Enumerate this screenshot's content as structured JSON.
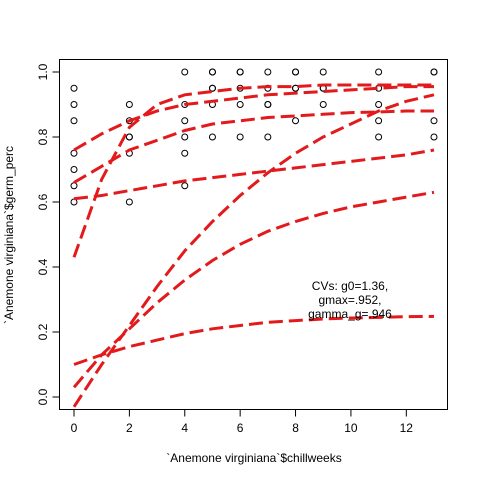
{
  "chart_data": {
    "type": "scatter",
    "title": "",
    "xlabel": "`Anemone virginiana`$chillweeks",
    "ylabel": "`Anemone virginiana`$germ_perc",
    "xlim": [
      -0.5,
      13.5
    ],
    "ylim": [
      -0.02,
      1.02
    ],
    "x_ticks": [
      0,
      2,
      4,
      6,
      8,
      10,
      12
    ],
    "x_tick_labels": [
      "0",
      "2",
      "4",
      "6",
      "8",
      "10",
      "12"
    ],
    "y_ticks": [
      0.0,
      0.2,
      0.4,
      0.6,
      0.8,
      1.0
    ],
    "y_tick_labels": [
      "0.0",
      "0.2",
      "0.4",
      "0.6",
      "0.8",
      "1.0"
    ],
    "grid": false,
    "legend": "none",
    "points": [
      {
        "x": 0,
        "y": 0.95
      },
      {
        "x": 0,
        "y": 0.9
      },
      {
        "x": 0,
        "y": 0.85
      },
      {
        "x": 0,
        "y": 0.75
      },
      {
        "x": 0,
        "y": 0.7
      },
      {
        "x": 0,
        "y": 0.65
      },
      {
        "x": 0,
        "y": 0.6
      },
      {
        "x": 2,
        "y": 0.9
      },
      {
        "x": 2,
        "y": 0.85
      },
      {
        "x": 2,
        "y": 0.8
      },
      {
        "x": 2,
        "y": 0.8
      },
      {
        "x": 2,
        "y": 0.75
      },
      {
        "x": 2,
        "y": 0.6
      },
      {
        "x": 4,
        "y": 1.0
      },
      {
        "x": 4,
        "y": 0.9
      },
      {
        "x": 4,
        "y": 0.85
      },
      {
        "x": 4,
        "y": 0.8
      },
      {
        "x": 4,
        "y": 0.75
      },
      {
        "x": 4,
        "y": 0.65
      },
      {
        "x": 5,
        "y": 1.0
      },
      {
        "x": 5,
        "y": 1.0
      },
      {
        "x": 5,
        "y": 0.95
      },
      {
        "x": 5,
        "y": 0.95
      },
      {
        "x": 5,
        "y": 0.9
      },
      {
        "x": 5,
        "y": 0.8
      },
      {
        "x": 6,
        "y": 1.0
      },
      {
        "x": 6,
        "y": 1.0
      },
      {
        "x": 6,
        "y": 0.95
      },
      {
        "x": 6,
        "y": 0.9
      },
      {
        "x": 6,
        "y": 0.8
      },
      {
        "x": 7,
        "y": 1.0
      },
      {
        "x": 7,
        "y": 0.95
      },
      {
        "x": 7,
        "y": 0.9
      },
      {
        "x": 7,
        "y": 0.9
      },
      {
        "x": 7,
        "y": 0.8
      },
      {
        "x": 8,
        "y": 1.0
      },
      {
        "x": 8,
        "y": 1.0
      },
      {
        "x": 8,
        "y": 0.95
      },
      {
        "x": 8,
        "y": 0.95
      },
      {
        "x": 8,
        "y": 0.85
      },
      {
        "x": 9,
        "y": 1.0
      },
      {
        "x": 9,
        "y": 0.95
      },
      {
        "x": 9,
        "y": 0.95
      },
      {
        "x": 9,
        "y": 0.9
      },
      {
        "x": 11,
        "y": 1.0
      },
      {
        "x": 11,
        "y": 0.95
      },
      {
        "x": 11,
        "y": 0.9
      },
      {
        "x": 11,
        "y": 0.85
      },
      {
        "x": 11,
        "y": 0.8
      },
      {
        "x": 13,
        "y": 1.0
      },
      {
        "x": 13,
        "y": 1.0
      },
      {
        "x": 13,
        "y": 0.85
      },
      {
        "x": 13,
        "y": 0.8
      }
    ],
    "series": [
      {
        "color": "#e31a1c",
        "x": [
          0,
          1,
          2,
          3,
          4,
          5,
          6,
          7,
          8,
          9,
          10,
          11,
          12,
          13
        ],
        "y": [
          0.43,
          0.67,
          0.83,
          0.9,
          0.93,
          0.94,
          0.95,
          0.955,
          0.955,
          0.96,
          0.96,
          0.96,
          0.96,
          0.96
        ]
      },
      {
        "color": "#e31a1c",
        "x": [
          0,
          1,
          2,
          3,
          4,
          5,
          6,
          7,
          8,
          9,
          10,
          11,
          12,
          13
        ],
        "y": [
          0.76,
          0.81,
          0.85,
          0.88,
          0.9,
          0.91,
          0.92,
          0.93,
          0.935,
          0.94,
          0.945,
          0.95,
          0.955,
          0.955
        ]
      },
      {
        "color": "#e31a1c",
        "x": [
          0,
          1,
          2,
          3,
          4,
          5,
          6,
          7,
          8,
          9,
          10,
          11,
          12,
          13
        ],
        "y": [
          0.66,
          0.71,
          0.76,
          0.79,
          0.82,
          0.84,
          0.85,
          0.86,
          0.865,
          0.87,
          0.875,
          0.877,
          0.88,
          0.88
        ]
      },
      {
        "color": "#e31a1c",
        "x": [
          0,
          1,
          2,
          3,
          4,
          5,
          6,
          7,
          8,
          9,
          10,
          11,
          12,
          13
        ],
        "y": [
          0.61,
          0.62,
          0.635,
          0.65,
          0.665,
          0.675,
          0.685,
          0.695,
          0.705,
          0.715,
          0.725,
          0.735,
          0.745,
          0.76
        ]
      },
      {
        "color": "#e31a1c",
        "x": [
          0,
          1,
          2,
          3,
          4,
          5,
          6,
          7,
          8,
          9,
          10,
          11,
          12,
          13
        ],
        "y": [
          -0.03,
          0.1,
          0.22,
          0.34,
          0.45,
          0.54,
          0.62,
          0.69,
          0.75,
          0.8,
          0.84,
          0.88,
          0.91,
          0.93
        ]
      },
      {
        "color": "#e31a1c",
        "x": [
          0,
          1,
          2,
          3,
          4,
          5,
          6,
          7,
          8,
          9,
          10,
          11,
          12,
          13
        ],
        "y": [
          0.03,
          0.13,
          0.21,
          0.29,
          0.36,
          0.42,
          0.47,
          0.51,
          0.54,
          0.565,
          0.585,
          0.6,
          0.615,
          0.63
        ]
      },
      {
        "color": "#e31a1c",
        "x": [
          0,
          1,
          2,
          3,
          4,
          5,
          6,
          7,
          8,
          9,
          10,
          11,
          12,
          13
        ],
        "y": [
          0.1,
          0.13,
          0.155,
          0.175,
          0.195,
          0.21,
          0.22,
          0.23,
          0.235,
          0.24,
          0.243,
          0.245,
          0.247,
          0.248
        ]
      }
    ],
    "annotations": [
      "CVs: g0=1.36,",
      "gmax=.952,",
      "gamma_g=.946"
    ]
  }
}
